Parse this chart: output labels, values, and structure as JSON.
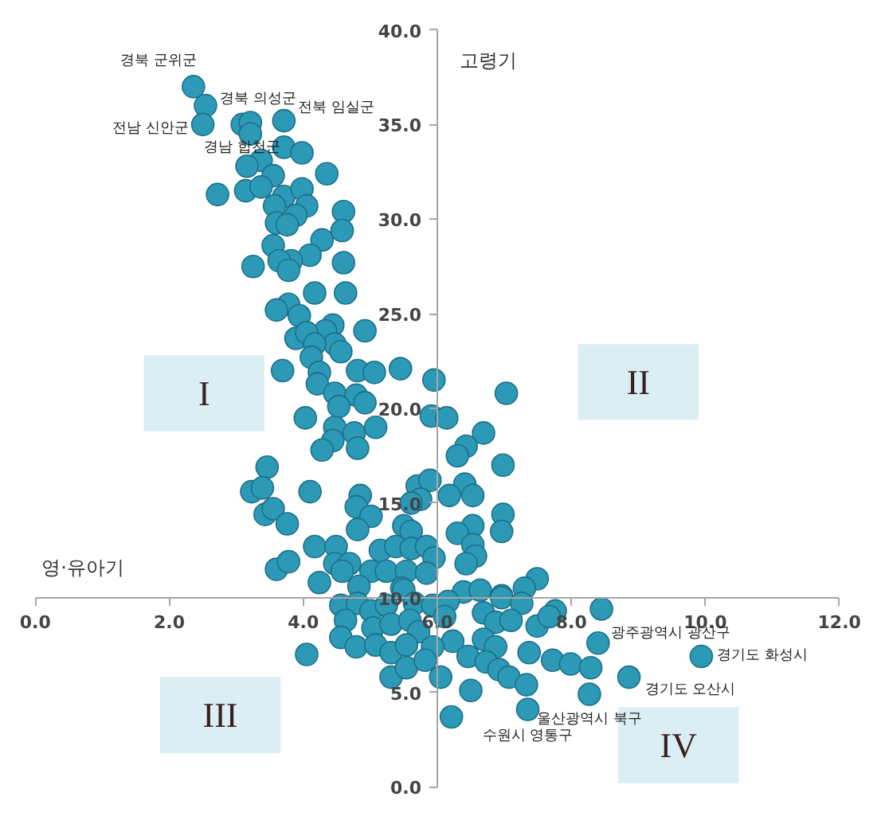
{
  "chart_data": {
    "type": "scatter",
    "xlabel": "영·유아기",
    "ylabel": "고령기",
    "xlim": [
      0,
      12
    ],
    "ylim": [
      0,
      40
    ],
    "xticks": [
      {
        "value": 0,
        "label": "0.0"
      },
      {
        "value": 2,
        "label": "2.0"
      },
      {
        "value": 4,
        "label": "4.0"
      },
      {
        "value": 6,
        "label": "6.0"
      },
      {
        "value": 8,
        "label": "8.0"
      },
      {
        "value": 10,
        "label": "10.0"
      },
      {
        "value": 12,
        "label": "12.0"
      }
    ],
    "yticks": [
      {
        "value": 0,
        "label": "0.0"
      },
      {
        "value": 5,
        "label": "5.0"
      },
      {
        "value": 10,
        "label": "10.0"
      },
      {
        "value": 15,
        "label": "15.0"
      },
      {
        "value": 20,
        "label": "20.0"
      },
      {
        "value": 25,
        "label": "25.0"
      },
      {
        "value": 30,
        "label": "30.0"
      },
      {
        "value": 35,
        "label": "35.0"
      },
      {
        "value": 40,
        "label": "40.0"
      }
    ],
    "marker": "circle",
    "series": [
      {
        "color": "#2c9ab7",
        "x": [
          2.36,
          2.54,
          2.5,
          3.09,
          3.71,
          3.21,
          3.21,
          3.71,
          3.98,
          3.37,
          3.16,
          3.55,
          4.35,
          2.72,
          3.14,
          3.37,
          3.71,
          3.98,
          3.57,
          4.05,
          3.89,
          4.6,
          3.6,
          3.76,
          4.58,
          3.55,
          4.28,
          4.1,
          3.82,
          3.64,
          3.25,
          3.78,
          4.6,
          4.17,
          4.63,
          3.78,
          3.6,
          3.94,
          4.44,
          4.92,
          3.89,
          4.33,
          4.05,
          4.47,
          4.17,
          4.56,
          4.12,
          3.69,
          4.24,
          4.81,
          5.06,
          5.45,
          4.21,
          5.95,
          7.03,
          4.47,
          4.79,
          4.53,
          4.92,
          4.03,
          5.91,
          6.14,
          6.69,
          4.47,
          4.76,
          5.08,
          4.44,
          4.28,
          4.81,
          6.43,
          6.3,
          6.98,
          3.46,
          3.23,
          3.39,
          4.1,
          5.7,
          5.89,
          6.41,
          6.18,
          6.53,
          5.75,
          5.61,
          4.85,
          4.79,
          3.43,
          3.55,
          3.76,
          5.01,
          4.81,
          6.98,
          6.53,
          6.3,
          6.96,
          5.5,
          5.61,
          6.53,
          6.57,
          6.43,
          4.17,
          4.49,
          5.15,
          5.38,
          5.61,
          5.84,
          5.95,
          3.6,
          3.78,
          4.47,
          4.69,
          4.58,
          5.01,
          5.24,
          5.54,
          5.84,
          4.24,
          4.83,
          7.49,
          7.3,
          6.39,
          6.64,
          6.96,
          5.47,
          4.56,
          4.81,
          5.01,
          5.24,
          5.5,
          5.66,
          5.93,
          6.16,
          6.96,
          7.26,
          7.76,
          8.45,
          6.69,
          6.87,
          7.1,
          7.49,
          7.67,
          4.63,
          5.04,
          5.31,
          5.59,
          5.72,
          6.11,
          6.23,
          4.56,
          4.79,
          4.05,
          5.08,
          5.31,
          5.54,
          5.93,
          6.69,
          6.87,
          6.46,
          6.73,
          6.92,
          7.07,
          7.33,
          7.37,
          7.72,
          7.99,
          5.31,
          5.54,
          5.82,
          6.05,
          6.5,
          6.21,
          8.29,
          8.4,
          9.94,
          8.86,
          8.27,
          7.35
        ],
        "values": [
          37.0,
          36.0,
          35.0,
          35.0,
          35.2,
          35.1,
          34.5,
          33.8,
          33.5,
          33.1,
          32.8,
          32.3,
          32.4,
          31.3,
          31.5,
          31.7,
          31.2,
          31.6,
          30.7,
          30.7,
          30.2,
          30.4,
          29.8,
          29.7,
          29.4,
          28.6,
          28.9,
          28.1,
          27.8,
          27.8,
          27.5,
          27.3,
          27.7,
          26.1,
          26.1,
          25.5,
          25.2,
          24.9,
          24.4,
          24.1,
          23.7,
          24.1,
          24.0,
          23.4,
          23.4,
          23.0,
          22.7,
          22.0,
          21.9,
          22.0,
          21.9,
          22.1,
          21.3,
          21.5,
          20.8,
          20.8,
          20.7,
          20.1,
          20.3,
          19.5,
          19.6,
          19.5,
          18.7,
          19.0,
          18.7,
          19.0,
          18.3,
          17.8,
          17.9,
          18.0,
          17.5,
          17.0,
          16.9,
          15.6,
          15.8,
          15.6,
          15.9,
          16.2,
          16.0,
          15.4,
          15.4,
          15.2,
          15.0,
          15.4,
          14.8,
          14.4,
          14.7,
          13.9,
          14.3,
          13.6,
          14.4,
          13.8,
          13.4,
          13.5,
          13.8,
          13.5,
          12.8,
          12.2,
          11.8,
          12.7,
          12.7,
          12.5,
          12.7,
          12.6,
          12.7,
          12.1,
          11.5,
          11.9,
          11.8,
          11.8,
          11.4,
          11.4,
          11.4,
          11.4,
          11.3,
          10.8,
          10.6,
          11.0,
          10.5,
          10.3,
          10.4,
          10.1,
          10.5,
          9.6,
          9.7,
          9.3,
          9.6,
          10.4,
          9.7,
          9.6,
          9.8,
          10.0,
          9.7,
          9.3,
          9.4,
          9.2,
          8.7,
          8.8,
          8.5,
          9.0,
          8.8,
          8.4,
          8.6,
          8.8,
          8.2,
          9.0,
          7.7,
          7.9,
          7.4,
          7.0,
          7.5,
          7.1,
          7.5,
          7.4,
          7.8,
          7.4,
          6.9,
          6.6,
          6.2,
          5.8,
          5.4,
          7.1,
          6.7,
          6.5,
          5.8,
          6.3,
          6.7,
          5.8,
          5.1,
          3.7,
          6.3,
          7.6,
          6.9,
          5.8,
          4.9,
          4.1
        ]
      }
    ],
    "annotations": [
      "I",
      "II",
      "III",
      "IV",
      {
        "text": "경북 군위군",
        "x": 2.36,
        "y": 37.0
      },
      {
        "text": "경북 의성군",
        "x": 2.54,
        "y": 36.0
      },
      {
        "text": "전남 신안군",
        "x": 2.5,
        "y": 35.0
      },
      {
        "text": "경남 합천군",
        "x": 3.09,
        "y": 35.0
      },
      {
        "text": "전북 임실군",
        "x": 3.71,
        "y": 35.2
      },
      {
        "text": "광주광역시 광산구",
        "x": 8.4,
        "y": 7.6
      },
      {
        "text": "경기도 화성시",
        "x": 9.94,
        "y": 6.9
      },
      {
        "text": "경기도 오산시",
        "x": 8.86,
        "y": 5.8
      },
      {
        "text": "울산광역시 북구",
        "x": 8.27,
        "y": 4.9
      },
      {
        "text": "수원시 영통구",
        "x": 7.35,
        "y": 4.1
      }
    ]
  }
}
